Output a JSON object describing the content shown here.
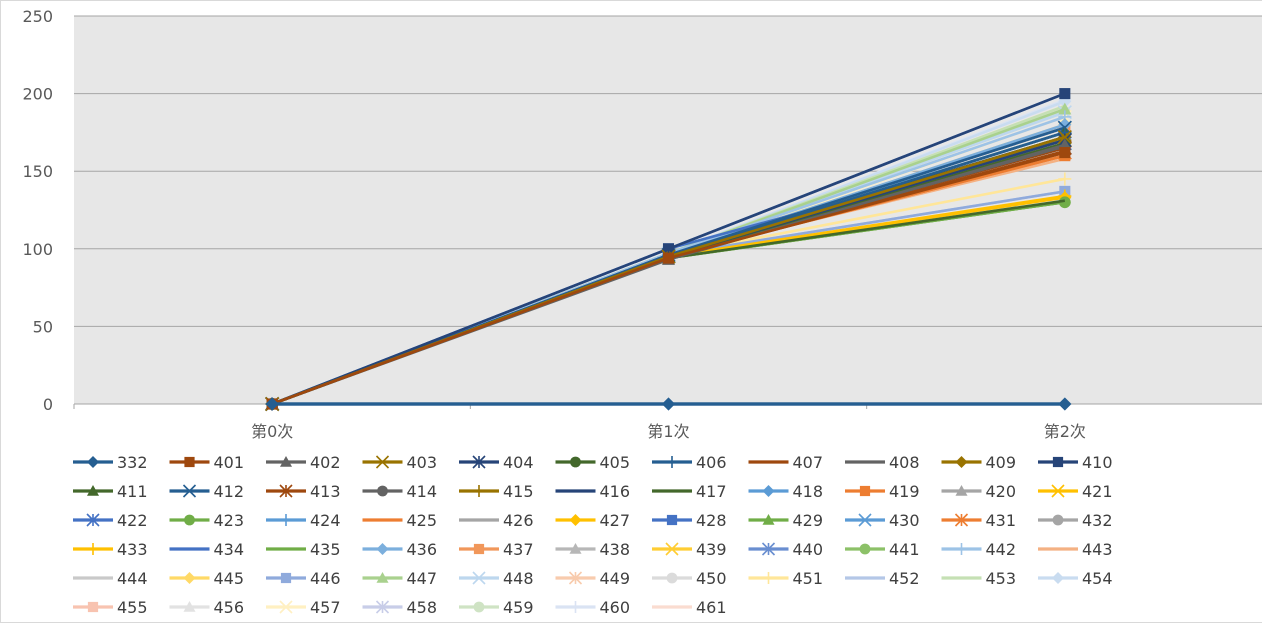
{
  "chart_data": {
    "type": "line",
    "title": "",
    "xlabel": "",
    "ylabel": "",
    "categories": [
      "第0次",
      "第1次",
      "第2次"
    ],
    "ylim": [
      0,
      250
    ],
    "yticks": [
      0,
      50,
      100,
      150,
      200,
      250
    ],
    "grid": true,
    "legend_position": "bottom",
    "series": [
      {
        "name": "332",
        "values": [
          0,
          0,
          0
        ],
        "color": "#255e91",
        "marker": "diamond"
      },
      {
        "name": "401",
        "values": [
          0,
          94,
          162
        ],
        "color": "#9e480e",
        "marker": "square"
      },
      {
        "name": "402",
        "values": [
          0,
          93,
          167
        ],
        "color": "#636363",
        "marker": "triangle"
      },
      {
        "name": "403",
        "values": [
          0,
          95,
          172
        ],
        "color": "#997300",
        "marker": "x"
      },
      {
        "name": "404",
        "values": [
          0,
          95,
          170
        ],
        "color": "#264478",
        "marker": "star"
      },
      {
        "name": "405",
        "values": [
          0,
          94,
          168
        ],
        "color": "#43682b",
        "marker": "circle"
      },
      {
        "name": "406",
        "values": [
          0,
          95,
          175
        ],
        "color": "#255e91",
        "marker": "plus"
      },
      {
        "name": "407",
        "values": [
          0,
          94,
          163
        ],
        "color": "#9e480e",
        "marker": "none"
      },
      {
        "name": "408",
        "values": [
          0,
          94,
          166
        ],
        "color": "#636363",
        "marker": "none"
      },
      {
        "name": "409",
        "values": [
          0,
          95,
          172
        ],
        "color": "#997300",
        "marker": "diamond"
      },
      {
        "name": "410",
        "values": [
          0,
          100,
          200
        ],
        "color": "#264478",
        "marker": "square"
      },
      {
        "name": "411",
        "values": [
          0,
          95,
          175
        ],
        "color": "#43682b",
        "marker": "triangle"
      },
      {
        "name": "412",
        "values": [
          0,
          96,
          178
        ],
        "color": "#255e91",
        "marker": "x"
      },
      {
        "name": "413",
        "values": [
          0,
          95,
          165
        ],
        "color": "#9e480e",
        "marker": "star"
      },
      {
        "name": "414",
        "values": [
          0,
          94,
          166
        ],
        "color": "#636363",
        "marker": "circle"
      },
      {
        "name": "415",
        "values": [
          0,
          95,
          170
        ],
        "color": "#997300",
        "marker": "plus"
      },
      {
        "name": "416",
        "values": [
          0,
          96,
          172
        ],
        "color": "#264478",
        "marker": "none"
      },
      {
        "name": "417",
        "values": [
          0,
          94,
          131
        ],
        "color": "#43682b",
        "marker": "none"
      },
      {
        "name": "418",
        "values": [
          0,
          96,
          170
        ],
        "color": "#5b9bd5",
        "marker": "diamond"
      },
      {
        "name": "419",
        "values": [
          0,
          95,
          160
        ],
        "color": "#ed7d31",
        "marker": "square"
      },
      {
        "name": "420",
        "values": [
          0,
          95,
          165
        ],
        "color": "#a5a5a5",
        "marker": "triangle"
      },
      {
        "name": "421",
        "values": [
          0,
          95,
          170
        ],
        "color": "#ffc000",
        "marker": "x"
      },
      {
        "name": "422",
        "values": [
          0,
          96,
          168
        ],
        "color": "#4472c4",
        "marker": "star"
      },
      {
        "name": "423",
        "values": [
          0,
          94,
          130
        ],
        "color": "#70ad47",
        "marker": "circle"
      },
      {
        "name": "424",
        "values": [
          0,
          96,
          175
        ],
        "color": "#5b9bd5",
        "marker": "plus"
      },
      {
        "name": "425",
        "values": [
          0,
          95,
          160
        ],
        "color": "#ed7d31",
        "marker": "none"
      },
      {
        "name": "426",
        "values": [
          0,
          95,
          165
        ],
        "color": "#a5a5a5",
        "marker": "none"
      },
      {
        "name": "427",
        "values": [
          0,
          95,
          133
        ],
        "color": "#ffc000",
        "marker": "diamond"
      },
      {
        "name": "428",
        "values": [
          0,
          100,
          170
        ],
        "color": "#4472c4",
        "marker": "square"
      },
      {
        "name": "429",
        "values": [
          0,
          95,
          172
        ],
        "color": "#70ad47",
        "marker": "triangle"
      },
      {
        "name": "430",
        "values": [
          0,
          96,
          178
        ],
        "color": "#5b9bd5",
        "marker": "x"
      },
      {
        "name": "431",
        "values": [
          0,
          95,
          162
        ],
        "color": "#ed7d31",
        "marker": "star"
      },
      {
        "name": "432",
        "values": [
          0,
          95,
          167
        ],
        "color": "#a5a5a5",
        "marker": "circle"
      },
      {
        "name": "433",
        "values": [
          0,
          95,
          134
        ],
        "color": "#ffc000",
        "marker": "plus"
      },
      {
        "name": "434",
        "values": [
          0,
          100,
          200
        ],
        "color": "#4472c4",
        "marker": "none"
      },
      {
        "name": "435",
        "values": [
          0,
          94,
          130
        ],
        "color": "#70ad47",
        "marker": "none"
      },
      {
        "name": "436",
        "values": [
          0,
          96,
          180
        ],
        "color": "#7cafdd",
        "marker": "diamond"
      },
      {
        "name": "437",
        "values": [
          0,
          96,
          178
        ],
        "color": "#f1975a",
        "marker": "square"
      },
      {
        "name": "438",
        "values": [
          0,
          95,
          172
        ],
        "color": "#b7b7b7",
        "marker": "triangle"
      },
      {
        "name": "439",
        "values": [
          0,
          96,
          170
        ],
        "color": "#ffcd33",
        "marker": "x"
      },
      {
        "name": "440",
        "values": [
          0,
          96,
          165
        ],
        "color": "#698ed0",
        "marker": "star"
      },
      {
        "name": "441",
        "values": [
          0,
          94,
          130
        ],
        "color": "#8cc168",
        "marker": "circle"
      },
      {
        "name": "442",
        "values": [
          0,
          97,
          185
        ],
        "color": "#9dc3e6",
        "marker": "plus"
      },
      {
        "name": "443",
        "values": [
          0,
          96,
          158
        ],
        "color": "#f4b183",
        "marker": "none"
      },
      {
        "name": "444",
        "values": [
          0,
          95,
          170
        ],
        "color": "#c9c9c9",
        "marker": "none"
      },
      {
        "name": "445",
        "values": [
          0,
          96,
          180
        ],
        "color": "#ffd966",
        "marker": "diamond"
      },
      {
        "name": "446",
        "values": [
          0,
          96,
          137
        ],
        "color": "#8faadc",
        "marker": "square"
      },
      {
        "name": "447",
        "values": [
          0,
          97,
          190
        ],
        "color": "#a9d18e",
        "marker": "triangle"
      },
      {
        "name": "448",
        "values": [
          0,
          97,
          188
        ],
        "color": "#bdd7ee",
        "marker": "x"
      },
      {
        "name": "449",
        "values": [
          0,
          96,
          178
        ],
        "color": "#f8cbad",
        "marker": "star"
      },
      {
        "name": "450",
        "values": [
          0,
          96,
          175
        ],
        "color": "#dbdbdb",
        "marker": "circle"
      },
      {
        "name": "451",
        "values": [
          0,
          96,
          145
        ],
        "color": "#ffe699",
        "marker": "plus"
      },
      {
        "name": "452",
        "values": [
          0,
          96,
          137
        ],
        "color": "#b4c7e7",
        "marker": "none"
      },
      {
        "name": "453",
        "values": [
          0,
          97,
          192
        ],
        "color": "#c5e0b4",
        "marker": "none"
      },
      {
        "name": "454",
        "values": [
          0,
          97,
          195
        ],
        "color": "#c9dcf0",
        "marker": "diamond"
      },
      {
        "name": "455",
        "values": [
          0,
          96,
          178
        ],
        "color": "#f8c3b0",
        "marker": "square"
      },
      {
        "name": "456",
        "values": [
          0,
          96,
          180
        ],
        "color": "#e2e2e2",
        "marker": "triangle"
      },
      {
        "name": "457",
        "values": [
          0,
          96,
          185
        ],
        "color": "#fff0c2",
        "marker": "x"
      },
      {
        "name": "458",
        "values": [
          0,
          96,
          172
        ],
        "color": "#c8cde8",
        "marker": "star"
      },
      {
        "name": "459",
        "values": [
          0,
          97,
          188
        ],
        "color": "#cfe3c4",
        "marker": "circle"
      },
      {
        "name": "460",
        "values": [
          0,
          97,
          196
        ],
        "color": "#dae3f3",
        "marker": "plus"
      },
      {
        "name": "461",
        "values": [
          0,
          97,
          192
        ],
        "color": "#fadcd0",
        "marker": "none"
      }
    ]
  }
}
